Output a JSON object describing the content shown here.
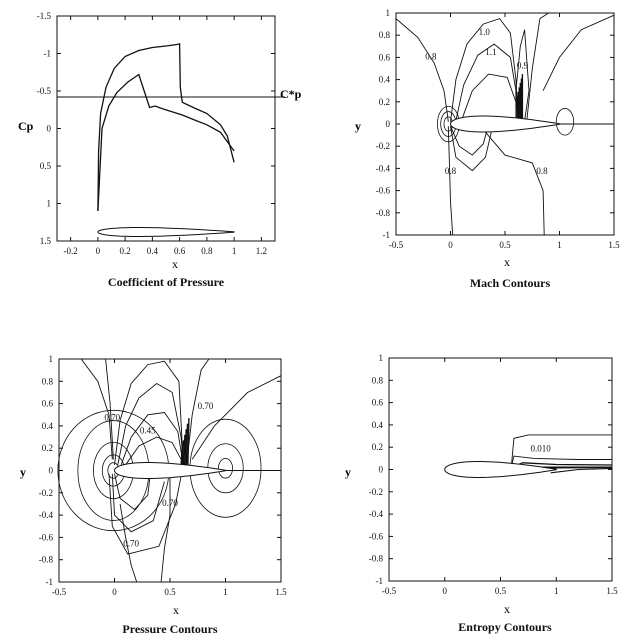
{
  "panels": [
    {
      "id": "cp",
      "title": "Coefficient of Pressure",
      "xlabel": "x",
      "ylabel": "Cp",
      "ylabel_sub": "p",
      "xticks": [
        "-0.2",
        "0",
        "0.2",
        "0.4",
        "0.6",
        "0.8",
        "1",
        "1.2"
      ],
      "yticks": [
        "-1.5",
        "-1",
        "-0.5",
        "0",
        "0.5",
        "1",
        "1.5"
      ],
      "annotation": "C*p"
    },
    {
      "id": "mach",
      "title": "Mach Contours",
      "xlabel": "x",
      "ylabel": "y",
      "xticks": [
        "-0.5",
        "0",
        "0.5",
        "1",
        "1.5"
      ],
      "yticks": [
        "1",
        "0.8",
        "0.6",
        "0.4",
        "0.2",
        "0",
        "-0.2",
        "-0.4",
        "-0.6",
        "-0.8",
        "-1"
      ],
      "contour_labels": [
        "0.8",
        "1.0",
        "1.1",
        "0.9",
        "0.8",
        "0.8"
      ]
    },
    {
      "id": "pressure",
      "title": "Pressure Contours",
      "xlabel": "x",
      "ylabel": "y",
      "xticks": [
        "-0.5",
        "0",
        "0.5",
        "1",
        "1.5"
      ],
      "yticks": [
        "1",
        "0.8",
        "0.6",
        "0.4",
        "0.2",
        "0",
        "-0.2",
        "-0.4",
        "-0.6",
        "-0.8",
        "-1"
      ],
      "contour_labels": [
        "0.70",
        "0.45",
        "0.70",
        "0.70",
        "0.70"
      ]
    },
    {
      "id": "entropy",
      "title": "Entropy Contours",
      "xlabel": "x",
      "ylabel": "y",
      "xticks": [
        "-0.5",
        "0",
        "0.5",
        "1",
        "1.5"
      ],
      "yticks": [
        "1",
        "0.8",
        "0.6",
        "0.4",
        "0.2",
        "0",
        "-0.2",
        "-0.4",
        "-0.6",
        "-0.8",
        "-1"
      ],
      "contour_labels": [
        "0.010"
      ]
    }
  ],
  "chart_data": [
    {
      "type": "line",
      "title": "Coefficient of Pressure",
      "xlabel": "x",
      "ylabel": "Cp",
      "xlim": [
        -0.3,
        1.3
      ],
      "ylim": [
        1.5,
        -1.5
      ],
      "y_inverted": true,
      "reference_line": {
        "name": "C*p",
        "y": -0.42
      },
      "series": [
        {
          "values": [
            [
              0.0,
              1.1
            ],
            [
              0.005,
              0.3
            ],
            [
              0.02,
              -0.2
            ],
            [
              0.06,
              -0.55
            ],
            [
              0.12,
              -0.8
            ],
            [
              0.2,
              -0.96
            ],
            [
              0.3,
              -1.04
            ],
            [
              0.4,
              -1.08
            ],
            [
              0.5,
              -1.1
            ],
            [
              0.58,
              -1.12
            ],
            [
              0.6,
              -1.13
            ],
            [
              0.605,
              -0.55
            ],
            [
              0.62,
              -0.35
            ],
            [
              0.7,
              -0.28
            ],
            [
              0.8,
              -0.2
            ],
            [
              0.9,
              -0.05
            ],
            [
              0.95,
              0.1
            ],
            [
              1.0,
              0.45
            ]
          ]
        },
        {
          "values": [
            [
              0.0,
              1.1
            ],
            [
              0.03,
              0.0
            ],
            [
              0.08,
              -0.3
            ],
            [
              0.14,
              -0.48
            ],
            [
              0.22,
              -0.62
            ],
            [
              0.3,
              -0.72
            ],
            [
              0.34,
              -0.5
            ],
            [
              0.38,
              -0.28
            ],
            [
              0.42,
              -0.3
            ],
            [
              0.48,
              -0.26
            ],
            [
              0.55,
              -0.22
            ],
            [
              0.62,
              -0.18
            ],
            [
              0.7,
              -0.12
            ],
            [
              0.8,
              -0.05
            ],
            [
              0.9,
              0.05
            ],
            [
              1.0,
              0.3
            ]
          ]
        }
      ]
    },
    {
      "type": "contour",
      "title": "Mach Contours",
      "xlabel": "x",
      "ylabel": "y",
      "xlim": [
        -0.5,
        1.5
      ],
      "ylim": [
        -1,
        1
      ],
      "levels_labeled": [
        0.8,
        1.0,
        1.1,
        0.9,
        0.8,
        0.8
      ]
    },
    {
      "type": "contour",
      "title": "Pressure Contours",
      "xlabel": "x",
      "ylabel": "y",
      "xlim": [
        -0.5,
        1.5
      ],
      "ylim": [
        -1,
        1
      ],
      "levels_labeled": [
        0.7,
        0.45,
        0.7,
        0.7,
        0.7
      ]
    },
    {
      "type": "contour",
      "title": "Entropy Contours",
      "xlabel": "x",
      "ylabel": "y",
      "xlim": [
        -0.5,
        1.5
      ],
      "ylim": [
        -1,
        1
      ],
      "levels_labeled": [
        0.01
      ]
    }
  ]
}
